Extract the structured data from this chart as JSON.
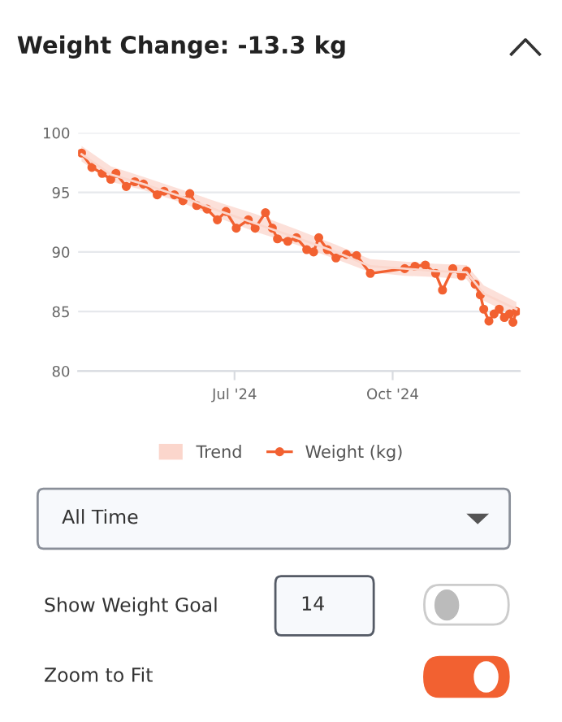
{
  "chart_data": {
    "type": "line",
    "title": "Weight Change: -13.3 kg",
    "xlim": [
      "2024-04-01",
      "2024-12-14"
    ],
    "xticks": [
      {
        "value": "2024-07-01",
        "label": "Jul '24"
      },
      {
        "value": "2024-10-01",
        "label": "Oct '24"
      }
    ],
    "ylim": [
      80,
      100
    ],
    "yticks": [
      80,
      85,
      90,
      95,
      100
    ],
    "grid": "y",
    "legend": "bottom",
    "marker": "circle",
    "line_style": "solid",
    "series": [
      {
        "name": "Trend",
        "color": "#fbd6cc",
        "marker": "none",
        "values": [
          98.2,
          96.5,
          95.7,
          94.6,
          93.5,
          92.4,
          91.2,
          90.0,
          88.8,
          88.6,
          88.4,
          88.3,
          86.5,
          85.2
        ],
        "x": [
          "2024-04-03",
          "2024-04-20",
          "2024-05-09",
          "2024-06-01",
          "2024-06-21",
          "2024-07-13",
          "2024-08-06",
          "2024-08-29",
          "2024-09-18",
          "2024-10-08",
          "2024-10-26",
          "2024-11-13",
          "2024-11-23",
          "2024-12-12"
        ],
        "lower": [
          97.6,
          95.9,
          95.2,
          94.1,
          92.9,
          91.7,
          90.6,
          89.4,
          88.3,
          88.0,
          87.9,
          87.7,
          85.9,
          84.6
        ],
        "upper": [
          98.9,
          97.2,
          96.3,
          95.2,
          94.2,
          93.2,
          91.9,
          90.6,
          89.4,
          89.2,
          89.0,
          88.9,
          87.2,
          85.8
        ]
      },
      {
        "name": "Weight (kg)",
        "color": "#f26131",
        "x": [
          "2024-04-03",
          "2024-04-09",
          "2024-04-15",
          "2024-04-20",
          "2024-04-23",
          "2024-04-29",
          "2024-05-04",
          "2024-05-09",
          "2024-05-17",
          "2024-05-21",
          "2024-05-27",
          "2024-06-01",
          "2024-06-05",
          "2024-06-09",
          "2024-06-15",
          "2024-06-21",
          "2024-06-26",
          "2024-07-02",
          "2024-07-09",
          "2024-07-13",
          "2024-07-19",
          "2024-07-23",
          "2024-07-26",
          "2024-08-01",
          "2024-08-06",
          "2024-08-12",
          "2024-08-16",
          "2024-08-19",
          "2024-08-24",
          "2024-08-29",
          "2024-09-04",
          "2024-09-10",
          "2024-09-18",
          "2024-10-08",
          "2024-10-14",
          "2024-10-20",
          "2024-10-26",
          "2024-10-30",
          "2024-11-05",
          "2024-11-10",
          "2024-11-13",
          "2024-11-18",
          "2024-11-21",
          "2024-11-23",
          "2024-11-26",
          "2024-11-29",
          "2024-12-02",
          "2024-12-05",
          "2024-12-08",
          "2024-12-10",
          "2024-12-12"
        ],
        "values": [
          98.3,
          97.1,
          96.6,
          96.1,
          96.6,
          95.5,
          95.9,
          95.7,
          94.8,
          95.1,
          94.8,
          94.3,
          94.9,
          93.9,
          93.6,
          92.7,
          93.4,
          92.0,
          92.7,
          92.0,
          93.3,
          92.0,
          91.1,
          90.9,
          91.2,
          90.2,
          90.0,
          91.2,
          90.2,
          89.5,
          89.8,
          89.7,
          88.2,
          88.6,
          88.8,
          88.9,
          88.2,
          86.8,
          88.6,
          88.0,
          88.4,
          87.3,
          86.4,
          85.2,
          84.2,
          84.8,
          85.2,
          84.5,
          84.8,
          84.1,
          85.0
        ]
      }
    ],
    "annotations": [
      "All Time",
      "Show Weight Goal",
      "14",
      "Zoom to Fit"
    ]
  }
}
